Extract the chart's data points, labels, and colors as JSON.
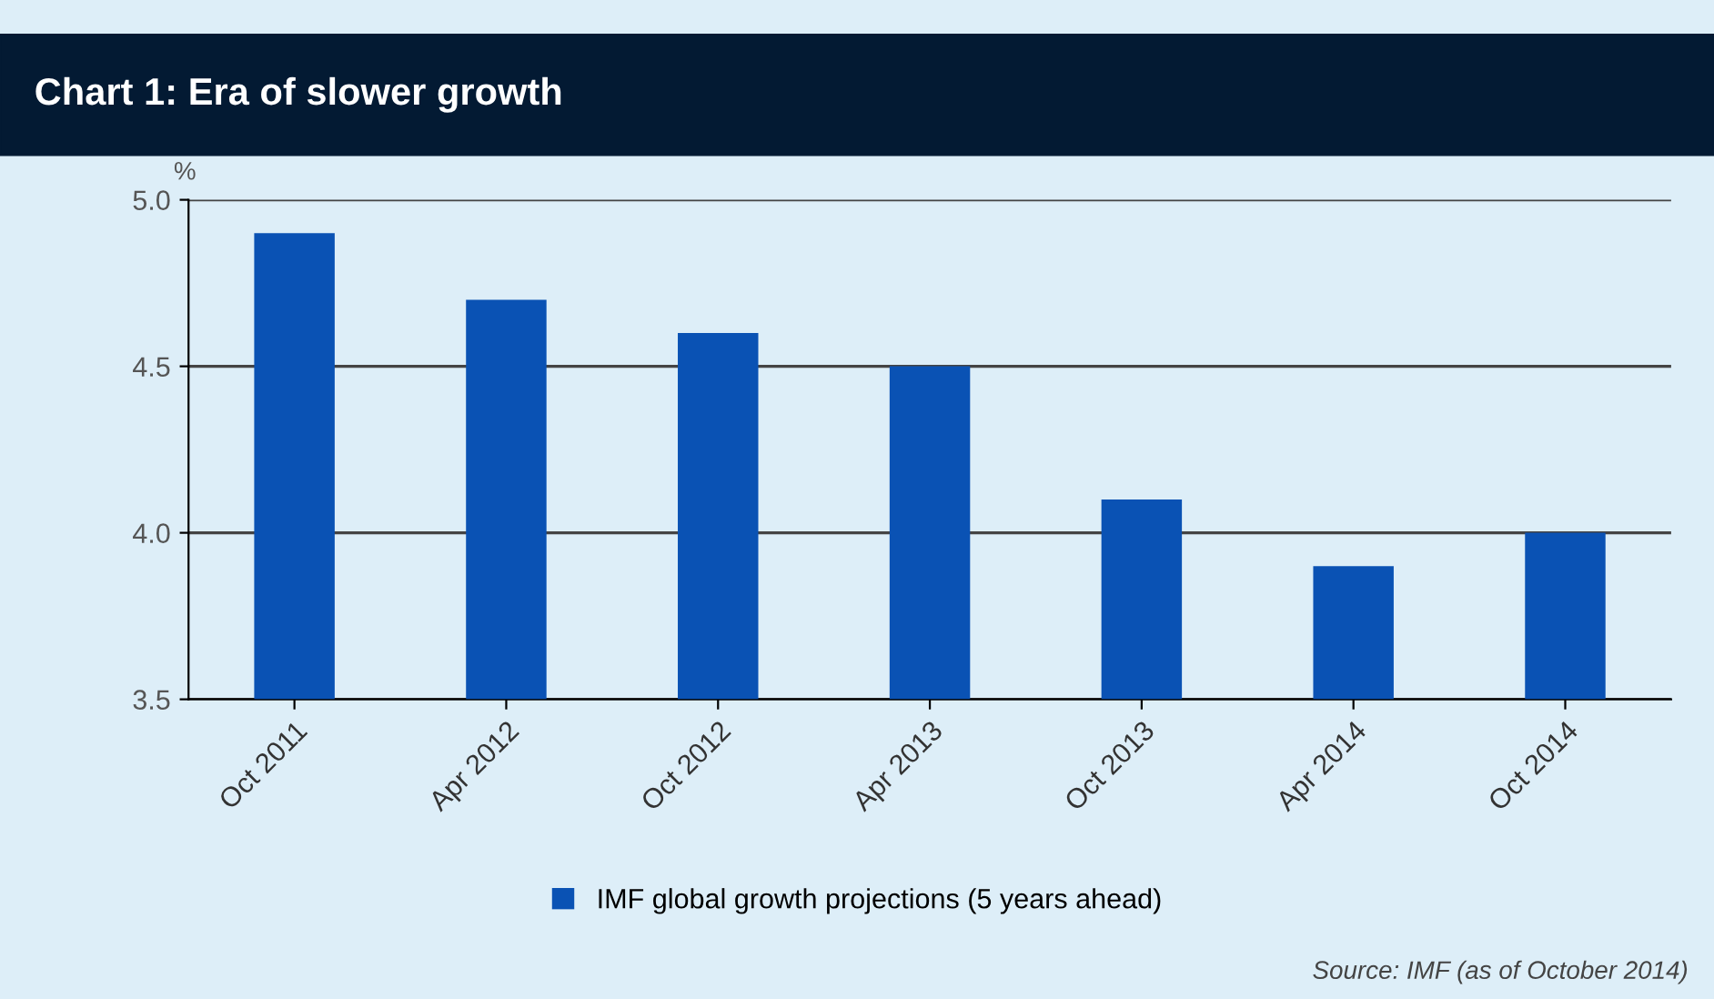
{
  "chart_data": {
    "type": "bar",
    "title": "Chart 1: Era of slower growth",
    "ylabel": "%",
    "categories": [
      "Oct 2011",
      "Apr 2012",
      "Oct 2012",
      "Apr 2013",
      "Oct 2013",
      "Apr 2014",
      "Oct 2014"
    ],
    "series": [
      {
        "name": "IMF global growth projections (5 years ahead)",
        "color": "#0a52b4",
        "values": [
          4.9,
          4.7,
          4.6,
          4.5,
          4.1,
          3.9,
          4.0
        ]
      }
    ],
    "ylim": [
      3.5,
      5.0
    ],
    "yticks": [
      3.5,
      {
        "value": 4.0,
        "label": "4.0"
      },
      4.5,
      {
        "value": 5.0,
        "label": "5.0"
      }
    ],
    "grid": "y",
    "legend": "bottom",
    "annotations": [
      "Source: IMF (as of October 2014)"
    ]
  }
}
